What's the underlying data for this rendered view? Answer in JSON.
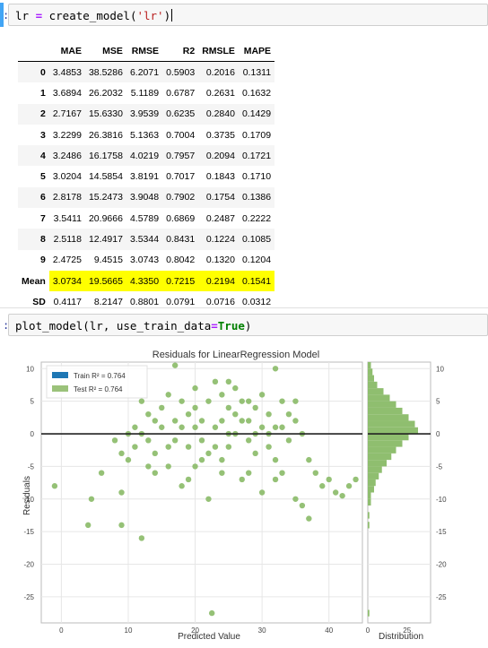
{
  "cells": [
    {
      "prompt": ":",
      "code": [
        {
          "t": "lr ",
          "c": ""
        },
        {
          "t": "=",
          "c": "op"
        },
        {
          "t": " create_model(",
          "c": ""
        },
        {
          "t": "'lr'",
          "c": "str"
        },
        {
          "t": ")",
          "c": ""
        }
      ]
    },
    {
      "prompt": ":",
      "code": [
        {
          "t": "plot_model(lr, use_train_data",
          "c": ""
        },
        {
          "t": "=",
          "c": "op"
        },
        {
          "t": "True",
          "c": "kw"
        },
        {
          "t": ")",
          "c": ""
        }
      ]
    }
  ],
  "metrics_table": {
    "columns": [
      "",
      "MAE",
      "MSE",
      "RMSE",
      "R2",
      "RMSLE",
      "MAPE"
    ],
    "rows": [
      [
        "0",
        "3.4853",
        "38.5286",
        "6.2071",
        "0.5903",
        "0.2016",
        "0.1311"
      ],
      [
        "1",
        "3.6894",
        "26.2032",
        "5.1189",
        "0.6787",
        "0.2631",
        "0.1632"
      ],
      [
        "2",
        "2.7167",
        "15.6330",
        "3.9539",
        "0.6235",
        "0.2840",
        "0.1429"
      ],
      [
        "3",
        "3.2299",
        "26.3816",
        "5.1363",
        "0.7004",
        "0.3735",
        "0.1709"
      ],
      [
        "4",
        "3.2486",
        "16.1758",
        "4.0219",
        "0.7957",
        "0.2094",
        "0.1721"
      ],
      [
        "5",
        "3.0204",
        "14.5854",
        "3.8191",
        "0.7017",
        "0.1843",
        "0.1710"
      ],
      [
        "6",
        "2.8178",
        "15.2473",
        "3.9048",
        "0.7902",
        "0.1754",
        "0.1386"
      ],
      [
        "7",
        "3.5411",
        "20.9666",
        "4.5789",
        "0.6869",
        "0.2487",
        "0.2222"
      ],
      [
        "8",
        "2.5118",
        "12.4917",
        "3.5344",
        "0.8431",
        "0.1224",
        "0.1085"
      ],
      [
        "9",
        "2.4725",
        "9.4515",
        "3.0743",
        "0.8042",
        "0.1320",
        "0.1204"
      ],
      [
        "Mean",
        "3.0734",
        "19.5665",
        "4.3350",
        "0.7215",
        "0.2194",
        "0.1541"
      ],
      [
        "SD",
        "0.4117",
        "8.2147",
        "0.8801",
        "0.0791",
        "0.0716",
        "0.0312"
      ]
    ],
    "highlight_row": "Mean",
    "highlight_color": "#ffff00"
  },
  "chart_data": {
    "type": "scatter",
    "title": "Residuals for LinearRegression Model",
    "xlabel": "Predicted Value",
    "ylabel": "Residuals",
    "xlim": [
      -3,
      45
    ],
    "ylim": [
      -29,
      11
    ],
    "xticks": [
      0,
      10,
      20,
      30,
      40
    ],
    "yticks": [
      10,
      5,
      0,
      -5,
      -10,
      -15,
      -20,
      -25
    ],
    "grid": true,
    "legend_position": "top-left",
    "legend": [
      {
        "label": "Train R² = 0.764",
        "color": "#1f77b4"
      },
      {
        "label": "Test R² = 0.764",
        "color": "#9bc27a"
      }
    ],
    "point_color": "#8fbe6f",
    "series": [
      {
        "name": "Test",
        "points": [
          [
            -1,
            -8
          ],
          [
            4,
            -14
          ],
          [
            4.5,
            -10
          ],
          [
            6,
            -6
          ],
          [
            9,
            -14
          ],
          [
            12,
            -16
          ],
          [
            9,
            -9
          ],
          [
            9,
            -3
          ],
          [
            10,
            -4
          ],
          [
            8,
            -1
          ],
          [
            11,
            -2
          ],
          [
            12,
            0
          ],
          [
            13,
            -1
          ],
          [
            14,
            2
          ],
          [
            15,
            4
          ],
          [
            10,
            0
          ],
          [
            16,
            -2
          ],
          [
            17,
            -1
          ],
          [
            18,
            1
          ],
          [
            19,
            3
          ],
          [
            20,
            4
          ],
          [
            21,
            -1
          ],
          [
            22,
            -3
          ],
          [
            23,
            1
          ],
          [
            24,
            2
          ],
          [
            25,
            4
          ],
          [
            26,
            7
          ],
          [
            27,
            5
          ],
          [
            28,
            2
          ],
          [
            29,
            4
          ],
          [
            30,
            6
          ],
          [
            31,
            3
          ],
          [
            32,
            10
          ],
          [
            33,
            1
          ],
          [
            34,
            3
          ],
          [
            35,
            5
          ],
          [
            36,
            0
          ],
          [
            37,
            -4
          ],
          [
            38,
            -6
          ],
          [
            39,
            -8
          ],
          [
            40,
            -7
          ],
          [
            41,
            -9
          ],
          [
            42,
            -9.5
          ],
          [
            43,
            -8
          ],
          [
            44,
            -7
          ],
          [
            17,
            10.5
          ],
          [
            23,
            8
          ],
          [
            20,
            -5
          ],
          [
            24,
            -6
          ],
          [
            27,
            -7
          ],
          [
            30,
            -9
          ],
          [
            33,
            -6
          ],
          [
            35,
            -10
          ],
          [
            36,
            -11
          ],
          [
            37,
            -13
          ],
          [
            22,
            -10
          ],
          [
            18,
            -8
          ],
          [
            14,
            -6
          ],
          [
            16,
            -5
          ],
          [
            19,
            -7
          ],
          [
            21,
            -4
          ],
          [
            25,
            -2
          ],
          [
            26,
            0
          ],
          [
            28,
            -1
          ],
          [
            29,
            -3
          ],
          [
            31,
            -2
          ],
          [
            32,
            -4
          ],
          [
            34,
            -1
          ],
          [
            35,
            2
          ],
          [
            33,
            5
          ],
          [
            24,
            6
          ],
          [
            22,
            5
          ],
          [
            18,
            5
          ],
          [
            15,
            1
          ],
          [
            13,
            3
          ],
          [
            12,
            5
          ],
          [
            11,
            1
          ],
          [
            20,
            1
          ],
          [
            23,
            -2
          ],
          [
            26,
            3
          ],
          [
            28,
            5
          ],
          [
            30,
            1
          ],
          [
            31,
            0
          ],
          [
            17,
            2
          ],
          [
            19,
            -2
          ],
          [
            21,
            2
          ],
          [
            25,
            0
          ],
          [
            27,
            2
          ],
          [
            29,
            0
          ],
          [
            32,
            1
          ],
          [
            22.5,
            -27.5
          ],
          [
            16,
            6
          ],
          [
            20,
            7
          ],
          [
            25,
            8
          ],
          [
            14,
            -3
          ],
          [
            13,
            -5
          ],
          [
            24,
            -4
          ],
          [
            28,
            -6
          ],
          [
            32,
            -7
          ]
        ]
      }
    ],
    "distribution": {
      "xlabel": "Distribution",
      "xticks": [
        0,
        25
      ],
      "xlim": [
        0,
        40
      ],
      "bins": [
        [
          -9.5,
          2
        ],
        [
          -8.5,
          4
        ],
        [
          -7.5,
          5
        ],
        [
          -6.5,
          7
        ],
        [
          -5.5,
          9
        ],
        [
          -4.5,
          12
        ],
        [
          -3.5,
          15
        ],
        [
          -2.5,
          18
        ],
        [
          -1.5,
          22
        ],
        [
          -0.5,
          26
        ],
        [
          0.5,
          32
        ],
        [
          1.5,
          30
        ],
        [
          2.5,
          26
        ],
        [
          3.5,
          22
        ],
        [
          4.5,
          18
        ],
        [
          5.5,
          14
        ],
        [
          6.5,
          10
        ],
        [
          7.5,
          6
        ],
        [
          8.5,
          4
        ],
        [
          9.5,
          3
        ],
        [
          10.5,
          2
        ],
        [
          -10.5,
          2
        ],
        [
          -12.5,
          1
        ],
        [
          -14,
          1
        ],
        [
          -27.5,
          1
        ]
      ]
    }
  }
}
